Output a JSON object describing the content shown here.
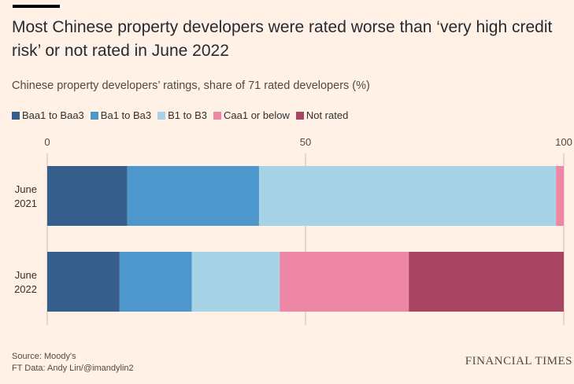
{
  "header": {
    "title": "Most Chinese property developers were rated worse than ‘very high credit risk’ or not rated in June 2022",
    "subtitle": "Chinese property developers’ ratings, share of 71 rated developers (%)"
  },
  "footer": {
    "source": "Source: Moody's",
    "credit": "FT Data: Andy Lin/@imandylin2",
    "brand": "FINANCIAL TIMES"
  },
  "chart_data": {
    "type": "bar",
    "orientation": "horizontal",
    "stacked": true,
    "title": "Most Chinese property developers were rated worse than ‘very high credit risk’ or not rated in June 2022",
    "subtitle": "Chinese property developers’ ratings, share of 71 rated developers (%)",
    "categories": [
      "June 2021",
      "June 2022"
    ],
    "category_lines": [
      [
        "June",
        "2021"
      ],
      [
        "June",
        "2022"
      ]
    ],
    "xlim": [
      0,
      100
    ],
    "xticks": [
      0,
      50,
      100
    ],
    "legend_position": "top-left",
    "series": [
      {
        "name": "Baa1 to Baa3",
        "color": "#355e8d",
        "values": [
          15.5,
          14
        ]
      },
      {
        "name": "Ba1 to Ba3",
        "color": "#4d97cc",
        "values": [
          25.5,
          14
        ]
      },
      {
        "name": "B1 to B3",
        "color": "#a6d4e6",
        "values": [
          57.5,
          17
        ]
      },
      {
        "name": "Caa1 or below",
        "color": "#ee87a6",
        "values": [
          1.5,
          25
        ]
      },
      {
        "name": "Not rated",
        "color": "#a74562",
        "values": [
          0,
          30
        ]
      }
    ]
  }
}
